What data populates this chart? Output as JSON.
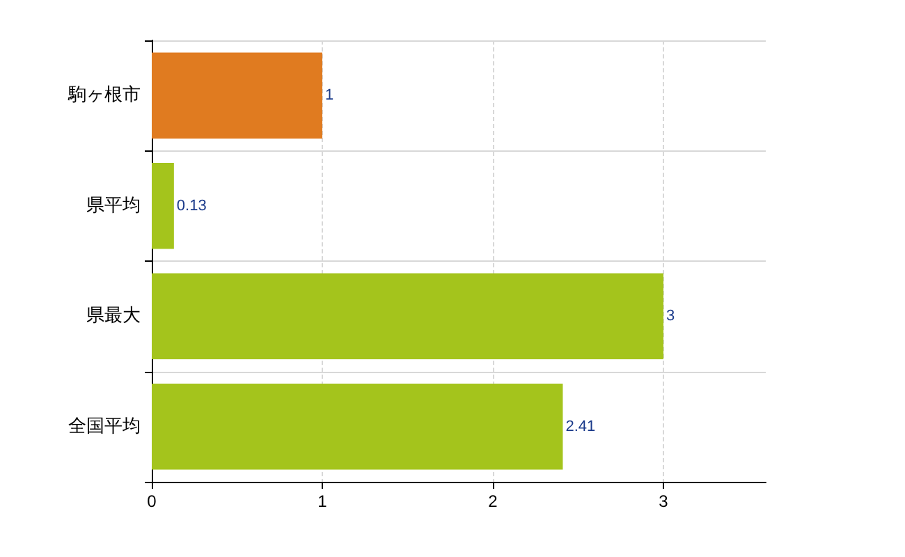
{
  "chart_data": {
    "type": "bar",
    "orientation": "horizontal",
    "categories": [
      "駒ヶ根市",
      "県平均",
      "県最大",
      "全国平均"
    ],
    "values": [
      1,
      0.13,
      3,
      2.41
    ],
    "colors": [
      "#e07b20",
      "#a4c41c",
      "#a4c41c",
      "#a4c41c"
    ],
    "xlim": [
      0,
      3.6
    ],
    "xticks": [
      0,
      1,
      2,
      3
    ],
    "grid": true,
    "data_labels": true
  }
}
